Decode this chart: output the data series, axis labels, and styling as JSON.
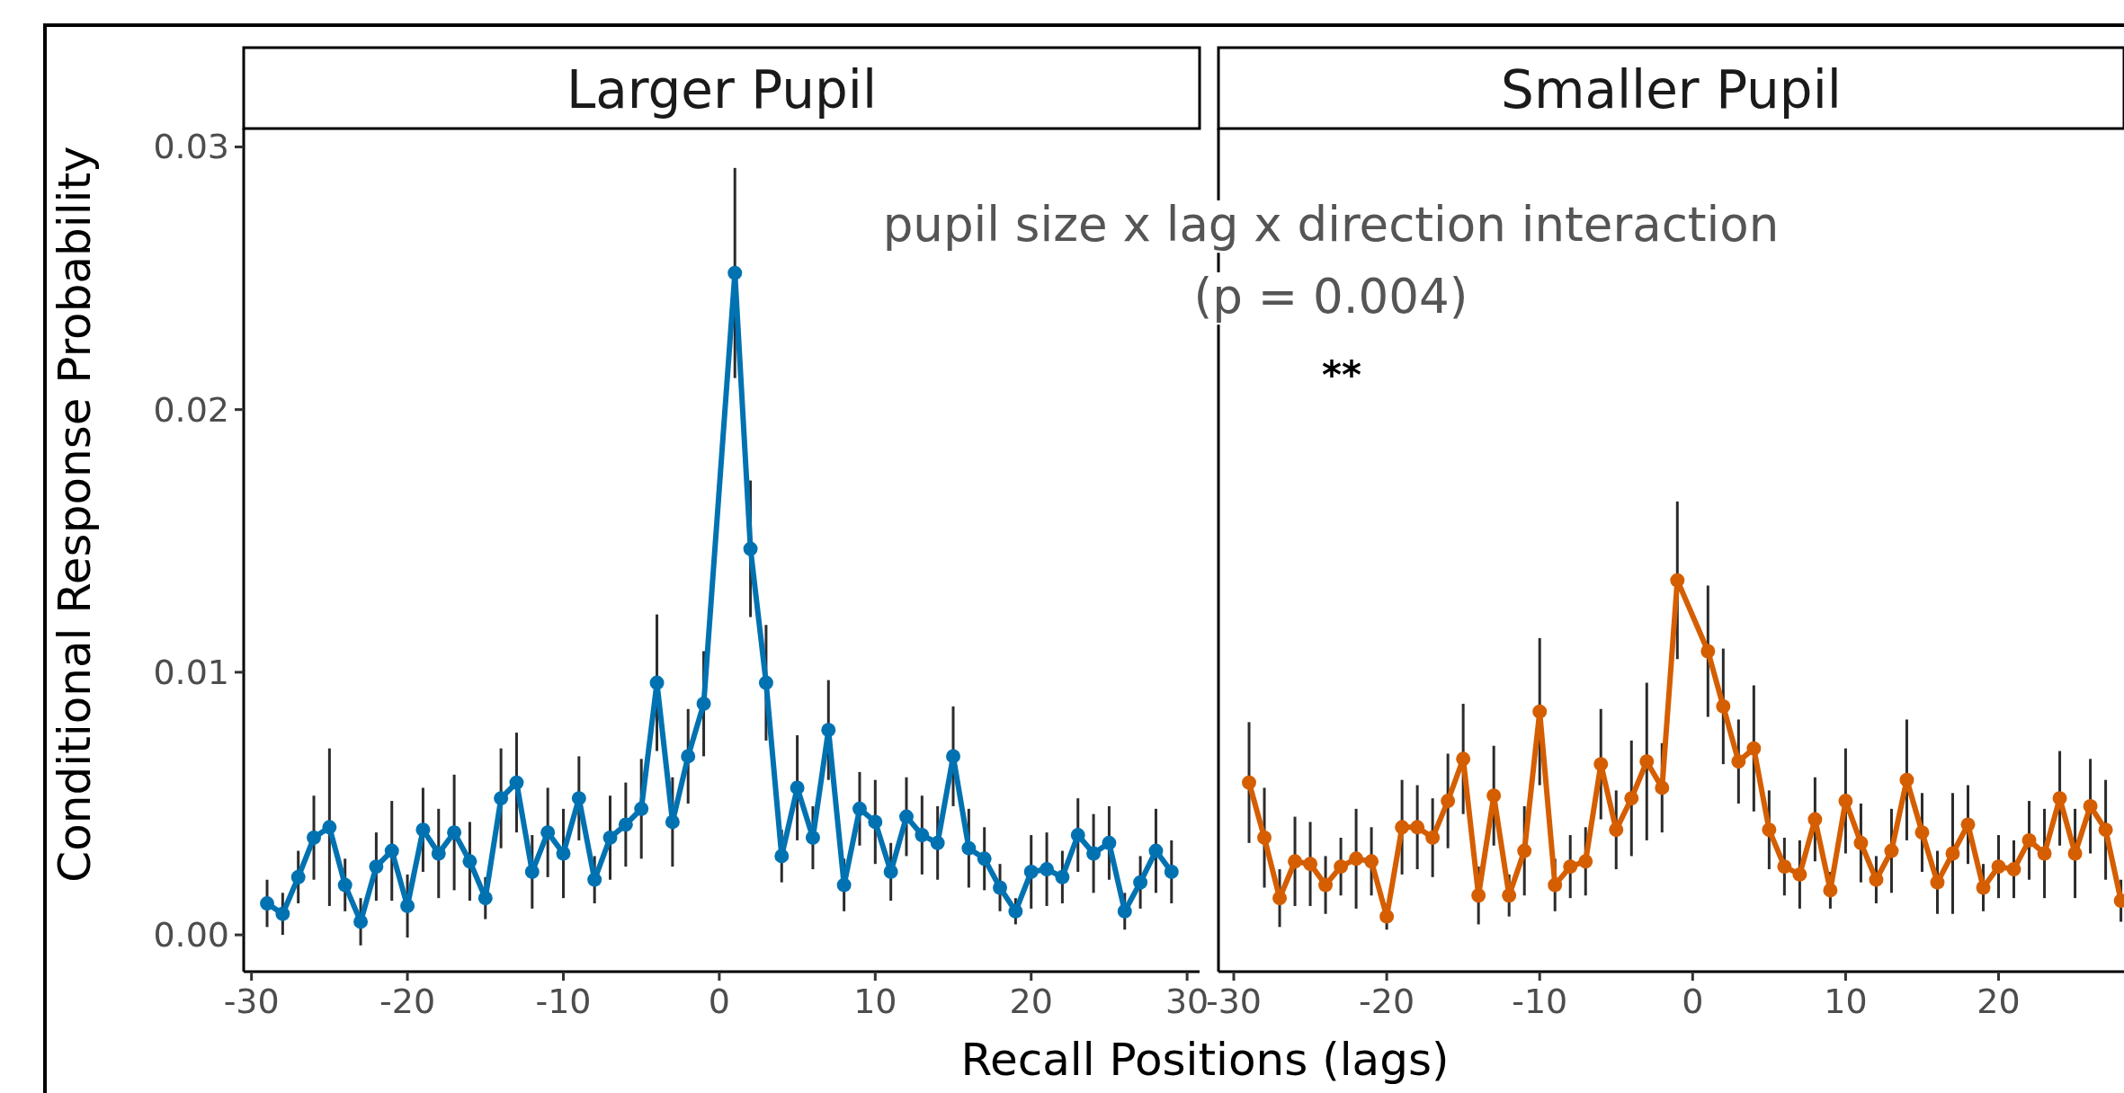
{
  "chart_data": [
    {
      "type": "line",
      "title": "Larger Pupil",
      "xlabel": "Recall Positions (lags)",
      "ylabel": "Conditional Response Probability",
      "annotations": [
        "pupil size x lag x direction interaction",
        "(p = 0.004)",
        "**"
      ],
      "xlim": [
        -30.5,
        30.8
      ],
      "xticks": [
        -30,
        -20,
        -10,
        0,
        10,
        20,
        30
      ],
      "ylim": [
        -0.0014,
        0.0307
      ],
      "yticks": [
        {
          "value": 0,
          "label": "0.00"
        },
        {
          "value": 0.01,
          "label": "0.01"
        },
        {
          "value": 0.02,
          "label": "0.02"
        },
        {
          "value": 0.03,
          "label": "0.03"
        }
      ],
      "x": [
        -29,
        -28,
        -27,
        -26,
        -25,
        -24,
        -23,
        -22,
        -21,
        -20,
        -19,
        -18,
        -17,
        -16,
        -15,
        -14,
        -13,
        -12,
        -11,
        -10,
        -9,
        -8,
        -7,
        -6,
        -5,
        -4,
        -3,
        -2,
        -1,
        1,
        2,
        3,
        4,
        5,
        6,
        7,
        8,
        9,
        10,
        11,
        12,
        13,
        14,
        15,
        16,
        17,
        18,
        19,
        20,
        21,
        22,
        23,
        24,
        25,
        26,
        27,
        28,
        29
      ],
      "marker": "circle",
      "line_style": "solid",
      "grid": false,
      "series": [
        {
          "color": "#0072b2",
          "values": [
            0.0012,
            0.0008,
            0.0022,
            0.0037,
            0.0041,
            0.0019,
            0.0005,
            0.0026,
            0.0032,
            0.0011,
            0.004,
            0.0031,
            0.0039,
            0.0028,
            0.0014,
            0.0052,
            0.0058,
            0.0024,
            0.0039,
            0.0031,
            0.0052,
            0.0021,
            0.0037,
            0.0042,
            0.0048,
            0.0096,
            0.0043,
            0.0068,
            0.0088,
            0.0252,
            0.0147,
            0.0096,
            0.003,
            0.0056,
            0.0037,
            0.0078,
            0.0019,
            0.0048,
            0.0043,
            0.0024,
            0.0045,
            0.0038,
            0.0035,
            0.0068,
            0.0033,
            0.0029,
            0.0018,
            0.0009,
            0.0024,
            0.0025,
            0.0022,
            0.0038,
            0.0031,
            0.0035,
            0.0009,
            0.002,
            0.0032,
            0.0024
          ],
          "errors": [
            0.0009,
            0.0008,
            0.001,
            0.0016,
            0.003,
            0.001,
            0.0009,
            0.0013,
            0.0019,
            0.0012,
            0.0016,
            0.0017,
            0.0022,
            0.0015,
            0.0008,
            0.0019,
            0.0019,
            0.0014,
            0.0017,
            0.0017,
            0.0016,
            0.0009,
            0.0016,
            0.0016,
            0.0019,
            0.0026,
            0.0017,
            0.0018,
            0.002,
            0.004,
            0.0026,
            0.0022,
            0.001,
            0.002,
            0.0012,
            0.0019,
            0.001,
            0.0014,
            0.0016,
            0.0011,
            0.0015,
            0.0015,
            0.0014,
            0.0019,
            0.0015,
            0.0012,
            0.0009,
            0.0005,
            0.0014,
            0.0014,
            0.001,
            0.0014,
            0.0015,
            0.0014,
            0.0007,
            0.001,
            0.0016,
            0.0012
          ]
        }
      ]
    },
    {
      "type": "line",
      "title": "Smaller Pupil",
      "tick_labels": "x",
      "xlim": [
        -31,
        28.2
      ],
      "xticks": [
        -30,
        -20,
        -10,
        0,
        10,
        20
      ],
      "ylim": [
        -0.0014,
        0.0307
      ],
      "x": [
        -29,
        -28,
        -27,
        -26,
        -25,
        -24,
        -23,
        -22,
        -21,
        -20,
        -19,
        -18,
        -17,
        -16,
        -15,
        -14,
        -13,
        -12,
        -11,
        -10,
        -9,
        -8,
        -7,
        -6,
        -5,
        -4,
        -3,
        -2,
        -1,
        1,
        2,
        3,
        4,
        5,
        6,
        7,
        8,
        9,
        10,
        11,
        12,
        13,
        14,
        15,
        16,
        17,
        18,
        19,
        20,
        21,
        22,
        23,
        24,
        25,
        26,
        27,
        28
      ],
      "marker": "circle",
      "line_style": "solid",
      "grid": false,
      "series": [
        {
          "color": "#d55e00",
          "values": [
            0.0058,
            0.0037,
            0.0014,
            0.0028,
            0.0027,
            0.0019,
            0.0026,
            0.0029,
            0.0028,
            0.0007,
            0.0041,
            0.0041,
            0.0037,
            0.0051,
            0.0067,
            0.0015,
            0.0053,
            0.0015,
            0.0032,
            0.0085,
            0.0019,
            0.0026,
            0.0028,
            0.0065,
            0.004,
            0.0052,
            0.0066,
            0.0056,
            0.0135,
            0.0108,
            0.0087,
            0.0066,
            0.0071,
            0.004,
            0.0026,
            0.0023,
            0.0044,
            0.0017,
            0.0051,
            0.0035,
            0.0021,
            0.0032,
            0.0059,
            0.0039,
            0.002,
            0.0031,
            0.0042,
            0.0018,
            0.0026,
            0.0025,
            0.0036,
            0.0031,
            0.0052,
            0.0031,
            0.0049,
            0.004,
            0.0013
          ],
          "errors": [
            0.0023,
            0.0019,
            0.0011,
            0.0017,
            0.0016,
            0.0011,
            0.0011,
            0.0019,
            0.0013,
            0.0005,
            0.0018,
            0.0016,
            0.0015,
            0.0018,
            0.0021,
            0.0011,
            0.0019,
            0.0008,
            0.0017,
            0.0028,
            0.001,
            0.0012,
            0.0013,
            0.0021,
            0.0015,
            0.0022,
            0.003,
            0.0017,
            0.003,
            0.0025,
            0.0022,
            0.0016,
            0.0024,
            0.0015,
            0.0011,
            0.0013,
            0.0016,
            0.0007,
            0.002,
            0.0015,
            0.0009,
            0.0016,
            0.0023,
            0.0015,
            0.0012,
            0.0023,
            0.0015,
            0.0009,
            0.0012,
            0.0011,
            0.0015,
            0.0017,
            0.0018,
            0.0017,
            0.0018,
            0.0019,
            0.0008
          ]
        }
      ]
    }
  ]
}
